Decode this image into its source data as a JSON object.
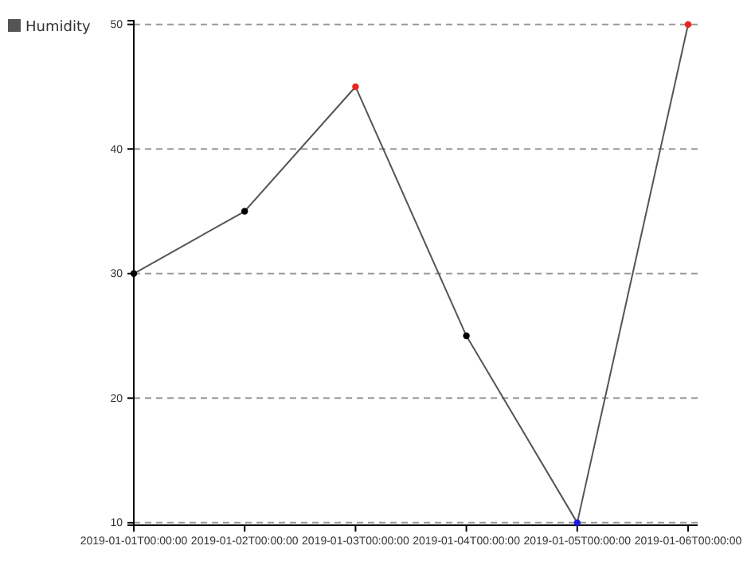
{
  "chart_data": {
    "type": "line",
    "categories": [
      "2019-01-01T00:00:00",
      "2019-01-02T00:00:00",
      "2019-01-03T00:00:00",
      "2019-01-04T00:00:00",
      "2019-01-05T00:00:00",
      "2019-01-06T00:00:00"
    ],
    "series": [
      {
        "name": "Humidity",
        "color": "#555555",
        "values": [
          30,
          35,
          45,
          25,
          10,
          50
        ],
        "colors": [
          "#000000",
          "#000000",
          "#e8261e",
          "#000000",
          "#1a1adb",
          "#e8261e"
        ]
      }
    ],
    "ylim": [
      9.8,
      50.3
    ],
    "yticks": [
      10,
      20,
      30,
      40,
      50
    ],
    "grid": "y",
    "legend": "top left",
    "marker": "circle",
    "line_style": "solid"
  }
}
